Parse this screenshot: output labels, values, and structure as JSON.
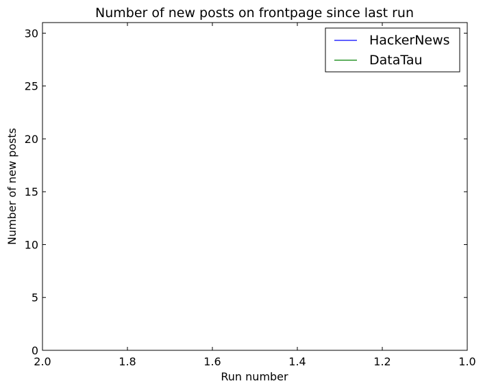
{
  "chart_data": {
    "type": "line",
    "title": "Number of new posts on frontpage since last run",
    "xlabel": "Run number",
    "ylabel": "Number of new posts",
    "xlim": [
      2.0,
      1.0
    ],
    "ylim": [
      0,
      31
    ],
    "xticks": [
      "2.0",
      "1.8",
      "1.6",
      "1.4",
      "1.2",
      "1.0"
    ],
    "yticks": [
      "0",
      "5",
      "10",
      "15",
      "20",
      "25",
      "30"
    ],
    "grid": false,
    "legend_position": "top-right",
    "series": [
      {
        "name": "HackerNews",
        "color": "#0000ff",
        "x": [],
        "y": []
      },
      {
        "name": "DataTau",
        "color": "#008000",
        "x": [],
        "y": []
      }
    ]
  }
}
